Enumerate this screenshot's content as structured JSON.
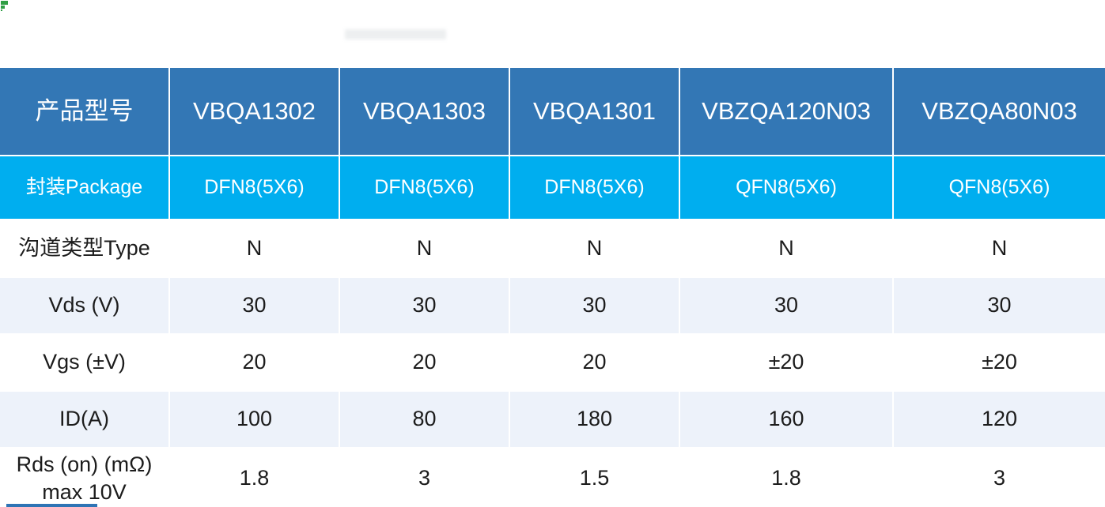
{
  "colors": {
    "header_bg": "#3377B5",
    "package_row_bg": "#00AEEF",
    "alt_row_bg": "#EDF2FA",
    "header_text": "#FFFFFF",
    "body_text": "#1C1C1C",
    "corner_mark_green": "#2F9E44",
    "bottom_bar_blue": "#2E74B5"
  },
  "decor": {
    "corner_mark_icon": "green-corner-mark",
    "watermark": "faint-illegible-watermark",
    "bottom_bar": "partially-visible-blue-bar"
  },
  "table": {
    "header_row": {
      "label": "产品型号",
      "models": [
        "VBQA1302",
        "VBQA1303",
        "VBQA1301",
        "VBZQA120N03",
        "VBZQA80N03"
      ]
    },
    "rows": [
      {
        "label": "封装Package",
        "values": [
          "DFN8(5X6)",
          "DFN8(5X6)",
          "DFN8(5X6)",
          "QFN8(5X6)",
          "QFN8(5X6)"
        ]
      },
      {
        "label": "沟道类型Type",
        "values": [
          "N",
          "N",
          "N",
          "N",
          "N"
        ]
      },
      {
        "label": "Vds (V)",
        "values": [
          "30",
          "30",
          "30",
          "30",
          "30"
        ]
      },
      {
        "label": "Vgs (±V)",
        "values": [
          "20",
          "20",
          "20",
          "±20",
          "±20"
        ]
      },
      {
        "label": "ID(A)",
        "values": [
          "100",
          "80",
          "180",
          "160",
          "120"
        ]
      },
      {
        "label": "Rds (on) (mΩ) max 10V",
        "values": [
          "1.8",
          "3",
          "1.5",
          "1.8",
          "3"
        ]
      }
    ]
  }
}
